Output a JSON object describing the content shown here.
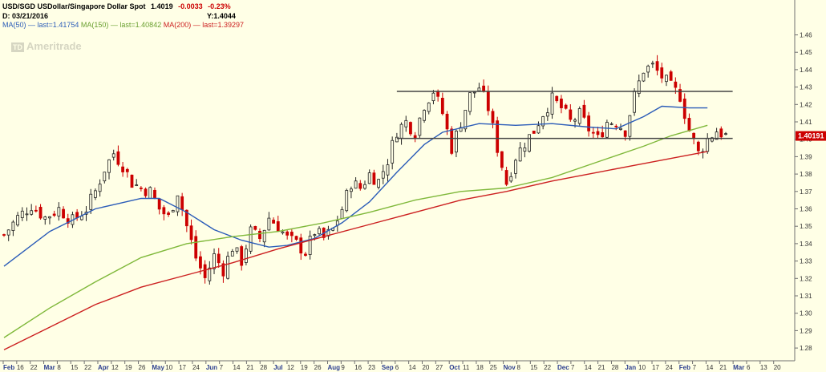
{
  "header": {
    "symbol_line": "USD/SGD USDollar/Singapore Dollar Spot",
    "last": "1.4019",
    "change": "-0.0033",
    "change_pct": "-0.23%",
    "date_label": "D: 03/21/2016",
    "y_label": "Y:1.4044",
    "ma50": "MA(50)",
    "ma50_last": "last=1.41754",
    "ma150": "MA(150)",
    "ma150_last": "last=1.40842",
    "ma200": "MA(200)",
    "ma200_last": "last=1.39297",
    "watermark_box": "TD",
    "watermark_text": "Ameritrade",
    "price_badge": "1.40191"
  },
  "colors": {
    "background": "#ffffe6",
    "up": "#222222",
    "down": "#cc0000",
    "ma50": "#2b5cb8",
    "ma150": "#7fb83a",
    "ma200": "#cc2020",
    "level": "#444444",
    "axis": "#707070",
    "badge_bg": "#cc0000"
  },
  "chart_data": {
    "type": "candlestick",
    "x_ticks": [
      "Feb",
      "16",
      "22",
      "Mar",
      "8",
      "15",
      "22",
      "Apr",
      "12",
      "19",
      "26",
      "May",
      "10",
      "17",
      "24",
      "Jun",
      "7",
      "14",
      "21",
      "28",
      "Jul",
      "12",
      "19",
      "26",
      "Aug",
      "9",
      "16",
      "23",
      "Sep",
      "6",
      "14",
      "20",
      "27",
      "Oct",
      "11",
      "18",
      "25",
      "Nov",
      "8",
      "15",
      "22",
      "Dec",
      "7",
      "14",
      "21",
      "28",
      "Jan",
      "10",
      "17",
      "24",
      "Feb",
      "7",
      "14",
      "21",
      "Mar",
      "6",
      "13",
      "20"
    ],
    "x_tick_bold": [
      "Feb",
      "Mar",
      "Apr",
      "May",
      "Jun",
      "Jul",
      "Aug",
      "Sep",
      "Oct",
      "Nov",
      "Dec",
      "Jan",
      "Feb",
      "Mar"
    ],
    "y_ticks": [
      "1.46",
      "1.45",
      "1.44",
      "1.43",
      "1.42",
      "1.41",
      "1.40",
      "1.39",
      "1.38",
      "1.37",
      "1.36",
      "1.35",
      "1.34",
      "1.33",
      "1.32",
      "1.31",
      "1.30",
      "1.29",
      "1.28"
    ],
    "ylim": [
      1.275,
      1.465
    ],
    "last_price": 1.40191,
    "close_path": [
      [
        0,
        1.345
      ],
      [
        3,
        1.355
      ],
      [
        6,
        1.362
      ],
      [
        9,
        1.355
      ],
      [
        12,
        1.36
      ],
      [
        15,
        1.353
      ],
      [
        18,
        1.36
      ],
      [
        20,
        1.37
      ],
      [
        22,
        1.383
      ],
      [
        24,
        1.392
      ],
      [
        26,
        1.385
      ],
      [
        28,
        1.375
      ],
      [
        30,
        1.372
      ],
      [
        32,
        1.37
      ],
      [
        34,
        1.36
      ],
      [
        36,
        1.355
      ],
      [
        38,
        1.37
      ],
      [
        40,
        1.35
      ],
      [
        42,
        1.332
      ],
      [
        44,
        1.32
      ],
      [
        46,
        1.333
      ],
      [
        48,
        1.325
      ],
      [
        50,
        1.338
      ],
      [
        52,
        1.33
      ],
      [
        54,
        1.347
      ],
      [
        56,
        1.343
      ],
      [
        58,
        1.355
      ],
      [
        60,
        1.35
      ],
      [
        62,
        1.343
      ],
      [
        64,
        1.34
      ],
      [
        66,
        1.335
      ],
      [
        68,
        1.347
      ],
      [
        70,
        1.343
      ],
      [
        72,
        1.348
      ],
      [
        74,
        1.36
      ],
      [
        76,
        1.375
      ],
      [
        78,
        1.372
      ],
      [
        80,
        1.38
      ],
      [
        82,
        1.376
      ],
      [
        84,
        1.388
      ],
      [
        86,
        1.405
      ],
      [
        88,
        1.41
      ],
      [
        90,
        1.404
      ],
      [
        92,
        1.42
      ],
      [
        94,
        1.428
      ],
      [
        96,
        1.415
      ],
      [
        98,
        1.395
      ],
      [
        100,
        1.41
      ],
      [
        102,
        1.425
      ],
      [
        104,
        1.43
      ],
      [
        106,
        1.418
      ],
      [
        108,
        1.395
      ],
      [
        110,
        1.375
      ],
      [
        112,
        1.39
      ],
      [
        114,
        1.398
      ],
      [
        116,
        1.405
      ],
      [
        118,
        1.415
      ],
      [
        120,
        1.423
      ],
      [
        122,
        1.418
      ],
      [
        124,
        1.41
      ],
      [
        126,
        1.414
      ],
      [
        128,
        1.406
      ],
      [
        130,
        1.4
      ],
      [
        132,
        1.41
      ],
      [
        134,
        1.41
      ],
      [
        136,
        1.405
      ],
      [
        138,
        1.425
      ],
      [
        140,
        1.44
      ],
      [
        142,
        1.442
      ],
      [
        144,
        1.436
      ],
      [
        146,
        1.43
      ],
      [
        148,
        1.425
      ],
      [
        150,
        1.405
      ],
      [
        152,
        1.392
      ],
      [
        154,
        1.4
      ],
      [
        156,
        1.405
      ],
      [
        158,
        1.402
      ]
    ],
    "bars_total": 158,
    "ma": [
      {
        "name": "MA(50)",
        "last": 1.41754,
        "points": [
          [
            0,
            1.327
          ],
          [
            10,
            1.347
          ],
          [
            20,
            1.36
          ],
          [
            30,
            1.366
          ],
          [
            34,
            1.366
          ],
          [
            40,
            1.358
          ],
          [
            46,
            1.348
          ],
          [
            52,
            1.342
          ],
          [
            58,
            1.338
          ],
          [
            62,
            1.339
          ],
          [
            68,
            1.343
          ],
          [
            74,
            1.352
          ],
          [
            80,
            1.364
          ],
          [
            86,
            1.381
          ],
          [
            92,
            1.397
          ],
          [
            96,
            1.404
          ],
          [
            104,
            1.409
          ],
          [
            112,
            1.408
          ],
          [
            120,
            1.409
          ],
          [
            128,
            1.407
          ],
          [
            134,
            1.406
          ],
          [
            140,
            1.413
          ],
          [
            144,
            1.419
          ],
          [
            150,
            1.418
          ],
          [
            154,
            1.418
          ]
        ]
      },
      {
        "name": "MA(150)",
        "last": 1.40842,
        "points": [
          [
            0,
            1.286
          ],
          [
            10,
            1.303
          ],
          [
            20,
            1.318
          ],
          [
            30,
            1.332
          ],
          [
            40,
            1.34
          ],
          [
            50,
            1.344
          ],
          [
            60,
            1.347
          ],
          [
            70,
            1.352
          ],
          [
            80,
            1.358
          ],
          [
            90,
            1.365
          ],
          [
            100,
            1.37
          ],
          [
            110,
            1.372
          ],
          [
            120,
            1.378
          ],
          [
            130,
            1.387
          ],
          [
            140,
            1.396
          ],
          [
            146,
            1.402
          ],
          [
            154,
            1.408
          ]
        ]
      },
      {
        "name": "MA(200)",
        "last": 1.39297,
        "points": [
          [
            0,
            1.279
          ],
          [
            10,
            1.292
          ],
          [
            20,
            1.305
          ],
          [
            30,
            1.315
          ],
          [
            40,
            1.322
          ],
          [
            50,
            1.329
          ],
          [
            60,
            1.337
          ],
          [
            70,
            1.344
          ],
          [
            80,
            1.351
          ],
          [
            90,
            1.358
          ],
          [
            100,
            1.365
          ],
          [
            110,
            1.37
          ],
          [
            120,
            1.376
          ],
          [
            130,
            1.381
          ],
          [
            140,
            1.386
          ],
          [
            148,
            1.39
          ],
          [
            154,
            1.393
          ]
        ]
      }
    ],
    "levels": [
      {
        "value": 1.4275,
        "from_bar": 86,
        "to_bar": 156
      },
      {
        "value": 1.4005,
        "from_bar": 86,
        "to_bar": 156
      }
    ]
  }
}
